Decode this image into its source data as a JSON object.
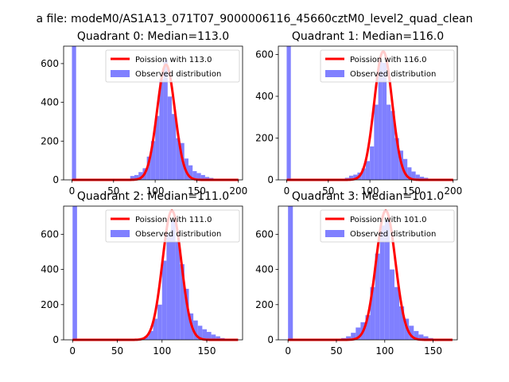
{
  "figure": {
    "suptitle": "a file: modeM0/AS1A13_071T07_9000006116_45660cztM0_level2_quad_clean"
  },
  "colors": {
    "fit": "#ff0000",
    "hist": "#8080ff"
  },
  "chart_data": [
    {
      "type": "bar",
      "title": "Quadrant 0: Median=113.0",
      "xlim": [
        -10,
        205
      ],
      "ylim": [
        0,
        690
      ],
      "xticks": [
        0,
        50,
        100,
        150,
        200
      ],
      "yticks": [
        0,
        200,
        400,
        600
      ],
      "grid": false,
      "legend_position": "top-right",
      "legend": [
        "Poission with 113.0",
        "Observed distribution"
      ],
      "series": [
        {
          "name": "Poission with 113.0",
          "kind": "line",
          "mean": 113.0,
          "peak": 595
        },
        {
          "name": "Observed distribution",
          "kind": "histogram",
          "bin_width": 5,
          "bins": [
            [
              0,
              690
            ],
            [
              70,
              20
            ],
            [
              75,
              25
            ],
            [
              80,
              40
            ],
            [
              85,
              60
            ],
            [
              90,
              120
            ],
            [
              95,
              200
            ],
            [
              100,
              330
            ],
            [
              105,
              520
            ],
            [
              110,
              620
            ],
            [
              115,
              430
            ],
            [
              120,
              340
            ],
            [
              125,
              215
            ],
            [
              130,
              190
            ],
            [
              135,
              110
            ],
            [
              140,
              75
            ],
            [
              145,
              45
            ],
            [
              150,
              35
            ],
            [
              155,
              25
            ],
            [
              160,
              15
            ],
            [
              165,
              10
            ],
            [
              170,
              5
            ],
            [
              175,
              3
            ],
            [
              180,
              2
            ],
            [
              185,
              1
            ],
            [
              190,
              1
            ]
          ]
        }
      ]
    },
    {
      "type": "bar",
      "title": "Quadrant 1: Median=116.0",
      "xlim": [
        -10,
        205
      ],
      "ylim": [
        0,
        640
      ],
      "xticks": [
        0,
        50,
        100,
        150,
        200
      ],
      "yticks": [
        0,
        200,
        400,
        600
      ],
      "grid": false,
      "legend_position": "top-right",
      "legend": [
        "Poission with 116.0",
        "Observed distribution"
      ],
      "series": [
        {
          "name": "Poission with 116.0",
          "kind": "line",
          "mean": 116.0,
          "peak": 615
        },
        {
          "name": "Observed distribution",
          "kind": "histogram",
          "bin_width": 5,
          "bins": [
            [
              0,
              640
            ],
            [
              65,
              5
            ],
            [
              70,
              10
            ],
            [
              75,
              20
            ],
            [
              80,
              25
            ],
            [
              85,
              35
            ],
            [
              90,
              55
            ],
            [
              95,
              90
            ],
            [
              100,
              160
            ],
            [
              105,
              360
            ],
            [
              110,
              570
            ],
            [
              115,
              560
            ],
            [
              120,
              360
            ],
            [
              125,
              330
            ],
            [
              130,
              200
            ],
            [
              135,
              140
            ],
            [
              140,
              100
            ],
            [
              145,
              60
            ],
            [
              150,
              40
            ],
            [
              155,
              25
            ],
            [
              160,
              15
            ],
            [
              165,
              10
            ],
            [
              170,
              5
            ],
            [
              175,
              3
            ],
            [
              180,
              2
            ],
            [
              185,
              1
            ]
          ]
        }
      ]
    },
    {
      "type": "bar",
      "title": "Quadrant 2: Median=111.0",
      "xlim": [
        -10,
        190
      ],
      "ylim": [
        0,
        760
      ],
      "xticks": [
        0,
        50,
        100,
        150
      ],
      "yticks": [
        0,
        200,
        400,
        600
      ],
      "grid": false,
      "legend_position": "top-right",
      "legend": [
        "Poission with 111.0",
        "Observed distribution"
      ],
      "series": [
        {
          "name": "Poission with 111.0",
          "kind": "line",
          "mean": 111.0,
          "peak": 735
        },
        {
          "name": "Observed distribution",
          "kind": "histogram",
          "bin_width": 5,
          "bins": [
            [
              0,
              760
            ],
            [
              75,
              10
            ],
            [
              80,
              20
            ],
            [
              85,
              50
            ],
            [
              90,
              120
            ],
            [
              95,
              200
            ],
            [
              100,
              450
            ],
            [
              105,
              600
            ],
            [
              110,
              680
            ],
            [
              115,
              560
            ],
            [
              120,
              430
            ],
            [
              125,
              290
            ],
            [
              130,
              150
            ],
            [
              135,
              110
            ],
            [
              140,
              80
            ],
            [
              145,
              60
            ],
            [
              150,
              45
            ],
            [
              155,
              30
            ],
            [
              160,
              20
            ],
            [
              165,
              10
            ],
            [
              170,
              5
            ],
            [
              175,
              3
            ],
            [
              180,
              2
            ]
          ]
        }
      ]
    },
    {
      "type": "bar",
      "title": "Quadrant 3: Median=101.0",
      "xlim": [
        -10,
        175
      ],
      "ylim": [
        0,
        760
      ],
      "xticks": [
        0,
        50,
        100,
        150
      ],
      "yticks": [
        0,
        200,
        400,
        600
      ],
      "grid": false,
      "legend_position": "top-right",
      "legend": [
        "Poission with 101.0",
        "Observed distribution"
      ],
      "series": [
        {
          "name": "Poission with 101.0",
          "kind": "line",
          "mean": 101.0,
          "peak": 735
        },
        {
          "name": "Observed distribution",
          "kind": "histogram",
          "bin_width": 5,
          "bins": [
            [
              0,
              760
            ],
            [
              55,
              10
            ],
            [
              60,
              20
            ],
            [
              65,
              40
            ],
            [
              70,
              70
            ],
            [
              75,
              100
            ],
            [
              80,
              140
            ],
            [
              85,
              300
            ],
            [
              90,
              490
            ],
            [
              95,
              650
            ],
            [
              100,
              680
            ],
            [
              105,
              400
            ],
            [
              110,
              300
            ],
            [
              115,
              190
            ],
            [
              120,
              120
            ],
            [
              125,
              80
            ],
            [
              130,
              50
            ],
            [
              135,
              30
            ],
            [
              140,
              20
            ],
            [
              145,
              10
            ],
            [
              150,
              5
            ],
            [
              155,
              3
            ],
            [
              160,
              2
            ]
          ]
        }
      ]
    }
  ]
}
